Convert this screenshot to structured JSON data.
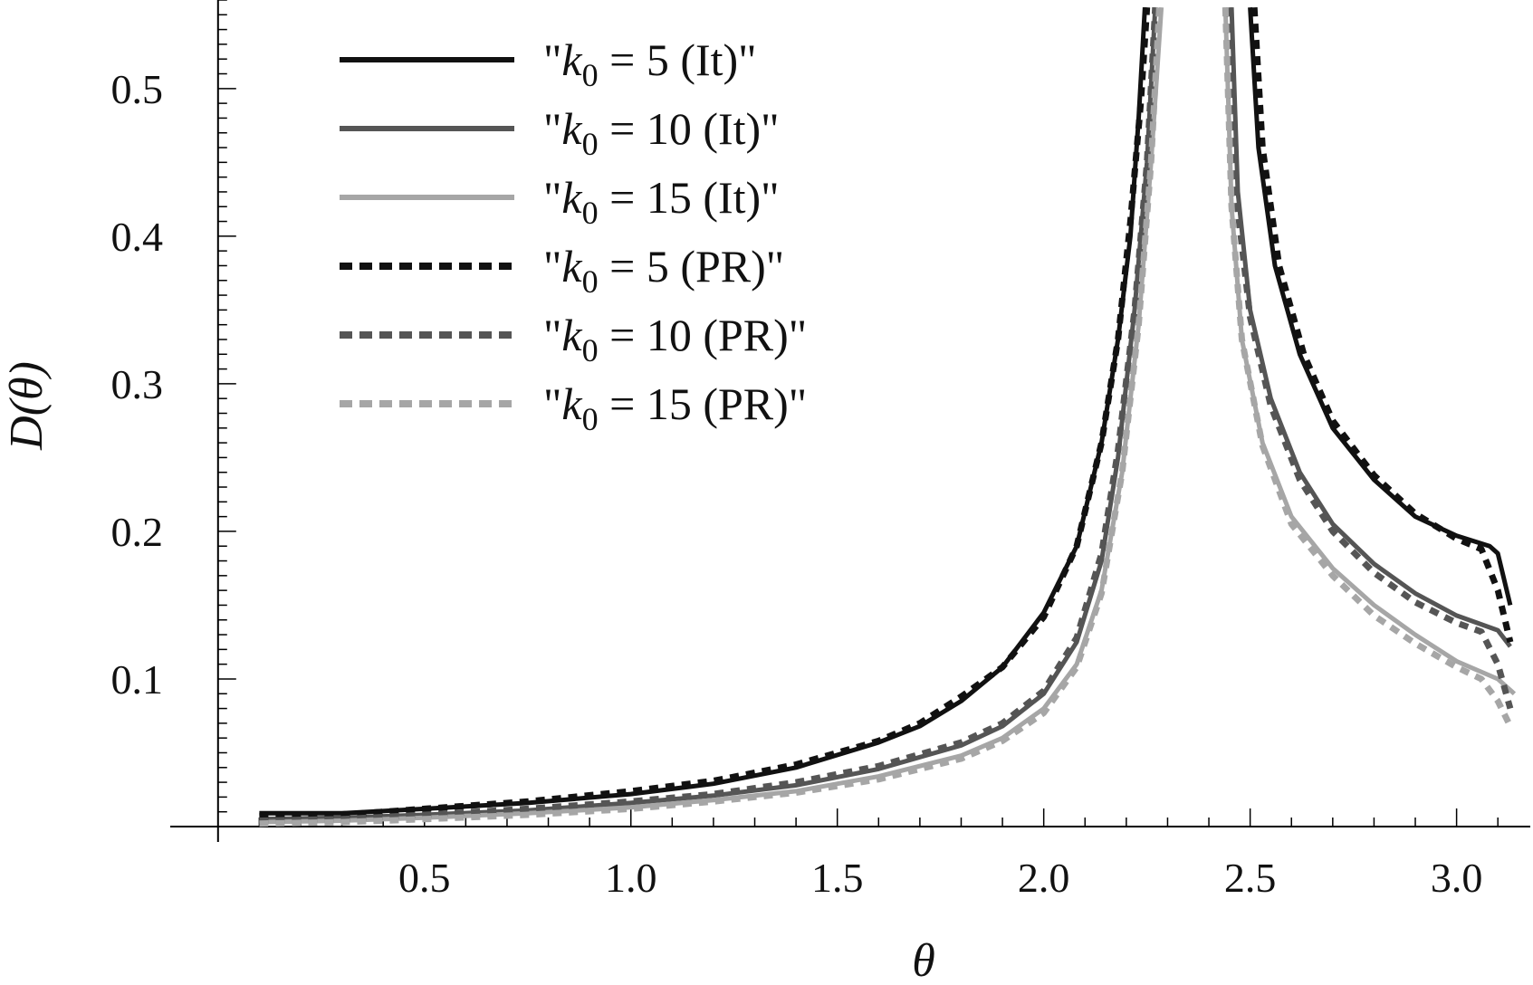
{
  "chart_data": {
    "type": "line",
    "xlabel": "θ",
    "ylabel": "D(θ)",
    "xlim": [
      -0.05,
      3.15
    ],
    "ylim": [
      0,
      0.56
    ],
    "xticks": [
      0.5,
      1.0,
      1.5,
      2.0,
      2.5,
      3.0
    ],
    "xtick_labels": [
      "0.5",
      "1.0",
      "1.5",
      "2.0",
      "2.5",
      "3.0"
    ],
    "yticks": [
      0.1,
      0.2,
      0.3,
      0.4,
      0.5
    ],
    "ytick_labels": [
      "0.1",
      "0.2",
      "0.3",
      "0.4",
      "0.5"
    ],
    "grid": false,
    "legend_position": "top-left",
    "series": [
      {
        "name": "\"k0 = 5 (It)\"",
        "legend_parts": [
          "\"",
          "k",
          "0",
          " = 5 (It)\""
        ],
        "color": "#111111",
        "dash": "solid",
        "segments": [
          [
            [
              0.1,
              0.009
            ],
            [
              0.3,
              0.009
            ],
            [
              0.5,
              0.012
            ],
            [
              0.75,
              0.016
            ],
            [
              1.0,
              0.022
            ],
            [
              1.2,
              0.029
            ],
            [
              1.4,
              0.04
            ],
            [
              1.6,
              0.057
            ],
            [
              1.7,
              0.068
            ],
            [
              1.8,
              0.085
            ],
            [
              1.9,
              0.108
            ],
            [
              2.0,
              0.145
            ],
            [
              2.08,
              0.19
            ],
            [
              2.14,
              0.26
            ],
            [
              2.18,
              0.33
            ],
            [
              2.21,
              0.4
            ],
            [
              2.23,
              0.48
            ],
            [
              2.245,
              0.555
            ]
          ],
          [
            [
              2.5,
              0.555
            ],
            [
              2.52,
              0.46
            ],
            [
              2.56,
              0.38
            ],
            [
              2.62,
              0.32
            ],
            [
              2.7,
              0.27
            ],
            [
              2.8,
              0.235
            ],
            [
              2.9,
              0.21
            ],
            [
              3.0,
              0.197
            ],
            [
              3.08,
              0.19
            ],
            [
              3.1,
              0.185
            ],
            [
              3.13,
              0.15
            ]
          ]
        ]
      },
      {
        "name": "\"k0 = 10 (It)\"",
        "legend_parts": [
          "\"",
          "k",
          "0",
          " = 10 (It)\""
        ],
        "color": "#555555",
        "dash": "solid",
        "segments": [
          [
            [
              0.1,
              0.005
            ],
            [
              0.3,
              0.006
            ],
            [
              0.5,
              0.008
            ],
            [
              0.75,
              0.011
            ],
            [
              1.0,
              0.016
            ],
            [
              1.2,
              0.021
            ],
            [
              1.4,
              0.028
            ],
            [
              1.6,
              0.039
            ],
            [
              1.8,
              0.055
            ],
            [
              1.9,
              0.068
            ],
            [
              2.0,
              0.09
            ],
            [
              2.08,
              0.125
            ],
            [
              2.14,
              0.18
            ],
            [
              2.18,
              0.25
            ],
            [
              2.22,
              0.35
            ],
            [
              2.25,
              0.45
            ],
            [
              2.27,
              0.555
            ]
          ],
          [
            [
              2.455,
              0.555
            ],
            [
              2.47,
              0.43
            ],
            [
              2.5,
              0.35
            ],
            [
              2.55,
              0.29
            ],
            [
              2.62,
              0.24
            ],
            [
              2.7,
              0.205
            ],
            [
              2.8,
              0.178
            ],
            [
              2.9,
              0.158
            ],
            [
              3.0,
              0.143
            ],
            [
              3.1,
              0.133
            ],
            [
              3.13,
              0.122
            ]
          ]
        ]
      },
      {
        "name": "\"k0 = 15 (It)\"",
        "legend_parts": [
          "\"",
          "k",
          "0",
          " = 15 (It)\""
        ],
        "color": "#a6a6a6",
        "dash": "solid",
        "segments": [
          [
            [
              0.1,
              0.003
            ],
            [
              0.3,
              0.004
            ],
            [
              0.5,
              0.006
            ],
            [
              0.75,
              0.009
            ],
            [
              1.0,
              0.013
            ],
            [
              1.2,
              0.018
            ],
            [
              1.4,
              0.024
            ],
            [
              1.6,
              0.034
            ],
            [
              1.8,
              0.048
            ],
            [
              1.9,
              0.06
            ],
            [
              2.0,
              0.08
            ],
            [
              2.08,
              0.11
            ],
            [
              2.14,
              0.16
            ],
            [
              2.19,
              0.24
            ],
            [
              2.23,
              0.34
            ],
            [
              2.26,
              0.45
            ],
            [
              2.285,
              0.555
            ]
          ],
          [
            [
              2.44,
              0.555
            ],
            [
              2.455,
              0.42
            ],
            [
              2.48,
              0.33
            ],
            [
              2.53,
              0.26
            ],
            [
              2.6,
              0.21
            ],
            [
              2.7,
              0.175
            ],
            [
              2.8,
              0.15
            ],
            [
              2.9,
              0.13
            ],
            [
              3.0,
              0.112
            ],
            [
              3.1,
              0.1
            ],
            [
              3.14,
              0.09
            ]
          ]
        ]
      },
      {
        "name": "\"k0 = 5 (PR)\"",
        "legend_parts": [
          "\"",
          "k",
          "0",
          " = 5 (PR)\""
        ],
        "color": "#111111",
        "dash": "dashed",
        "segments": [
          [
            [
              0.1,
              0.007
            ],
            [
              0.3,
              0.008
            ],
            [
              0.5,
              0.012
            ],
            [
              0.75,
              0.017
            ],
            [
              1.0,
              0.024
            ],
            [
              1.2,
              0.031
            ],
            [
              1.4,
              0.042
            ],
            [
              1.6,
              0.058
            ],
            [
              1.7,
              0.07
            ],
            [
              1.8,
              0.088
            ],
            [
              1.9,
              0.108
            ],
            [
              2.0,
              0.142
            ],
            [
              2.08,
              0.19
            ],
            [
              2.14,
              0.26
            ],
            [
              2.18,
              0.33
            ],
            [
              2.21,
              0.41
            ],
            [
              2.235,
              0.49
            ],
            [
              2.25,
              0.555
            ]
          ],
          [
            [
              2.51,
              0.555
            ],
            [
              2.53,
              0.46
            ],
            [
              2.57,
              0.38
            ],
            [
              2.63,
              0.32
            ],
            [
              2.7,
              0.275
            ],
            [
              2.8,
              0.238
            ],
            [
              2.9,
              0.212
            ],
            [
              3.0,
              0.195
            ],
            [
              3.06,
              0.188
            ],
            [
              3.1,
              0.16
            ],
            [
              3.13,
              0.125
            ]
          ]
        ]
      },
      {
        "name": "\"k0 = 10 (PR)\"",
        "legend_parts": [
          "\"",
          "k",
          "0",
          " = 10 (PR)\""
        ],
        "color": "#555555",
        "dash": "dashed",
        "segments": [
          [
            [
              0.1,
              0.004
            ],
            [
              0.3,
              0.005
            ],
            [
              0.5,
              0.008
            ],
            [
              0.75,
              0.012
            ],
            [
              1.0,
              0.017
            ],
            [
              1.2,
              0.022
            ],
            [
              1.4,
              0.03
            ],
            [
              1.6,
              0.041
            ],
            [
              1.8,
              0.057
            ],
            [
              1.9,
              0.07
            ],
            [
              2.0,
              0.092
            ],
            [
              2.08,
              0.128
            ],
            [
              2.14,
              0.185
            ],
            [
              2.18,
              0.255
            ],
            [
              2.22,
              0.35
            ],
            [
              2.25,
              0.45
            ],
            [
              2.27,
              0.555
            ]
          ],
          [
            [
              2.45,
              0.555
            ],
            [
              2.465,
              0.43
            ],
            [
              2.5,
              0.345
            ],
            [
              2.55,
              0.285
            ],
            [
              2.62,
              0.235
            ],
            [
              2.7,
              0.2
            ],
            [
              2.8,
              0.172
            ],
            [
              2.9,
              0.152
            ],
            [
              3.0,
              0.138
            ],
            [
              3.06,
              0.132
            ],
            [
              3.1,
              0.11
            ],
            [
              3.13,
              0.08
            ]
          ]
        ]
      },
      {
        "name": "\"k0 = 15 (PR)\"",
        "legend_parts": [
          "\"",
          "k",
          "0",
          " = 15 (PR)\""
        ],
        "color": "#a6a6a6",
        "dash": "dashed",
        "segments": [
          [
            [
              0.1,
              0.002
            ],
            [
              0.3,
              0.003
            ],
            [
              0.5,
              0.005
            ],
            [
              0.75,
              0.008
            ],
            [
              1.0,
              0.012
            ],
            [
              1.2,
              0.017
            ],
            [
              1.4,
              0.023
            ],
            [
              1.6,
              0.032
            ],
            [
              1.8,
              0.046
            ],
            [
              1.9,
              0.058
            ],
            [
              2.0,
              0.077
            ],
            [
              2.08,
              0.108
            ],
            [
              2.14,
              0.158
            ],
            [
              2.19,
              0.24
            ],
            [
              2.23,
              0.34
            ],
            [
              2.26,
              0.45
            ],
            [
              2.28,
              0.555
            ]
          ],
          [
            [
              2.44,
              0.555
            ],
            [
              2.455,
              0.42
            ],
            [
              2.48,
              0.33
            ],
            [
              2.53,
              0.258
            ],
            [
              2.6,
              0.205
            ],
            [
              2.7,
              0.17
            ],
            [
              2.8,
              0.143
            ],
            [
              2.9,
              0.124
            ],
            [
              3.0,
              0.108
            ],
            [
              3.06,
              0.1
            ],
            [
              3.1,
              0.085
            ],
            [
              3.13,
              0.068
            ]
          ]
        ]
      }
    ]
  }
}
